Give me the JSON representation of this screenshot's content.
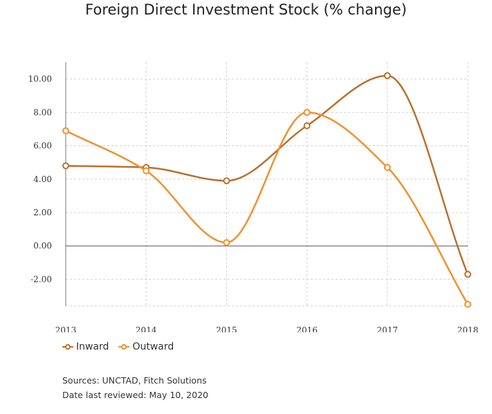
{
  "chart_data": {
    "type": "line",
    "title": "Foreign Direct Investment Stock (% change)",
    "x": [
      "2013",
      "2014",
      "2015",
      "2016",
      "2017",
      "2018"
    ],
    "series": [
      {
        "name": "Inward",
        "color": "#b8702e",
        "values": [
          4.8,
          4.7,
          3.9,
          7.2,
          10.2,
          -1.7
        ]
      },
      {
        "name": "Outward",
        "color": "#f0902e",
        "values": [
          6.9,
          4.5,
          0.2,
          8.0,
          4.7,
          -3.5
        ]
      }
    ],
    "y_ticks": [
      "10.00",
      "8.00",
      "6.00",
      "4.00",
      "2.00",
      "0.00",
      "-2.00"
    ],
    "ylim": [
      -3.6,
      11
    ],
    "grid": true,
    "legend": "bottom-left",
    "xlabel": "",
    "ylabel": ""
  },
  "footer": {
    "sources": "Sources: UNCTAD, Fitch Solutions",
    "reviewed": "Date last reviewed: May 10, 2020"
  }
}
